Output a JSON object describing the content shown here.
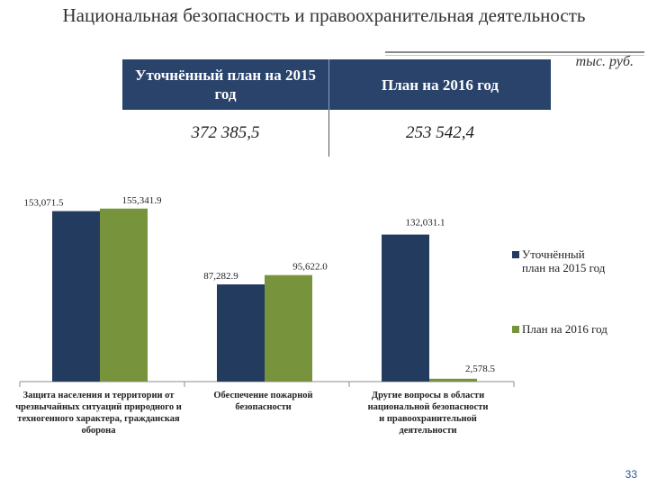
{
  "slide": {
    "title": "Национальная безопасность и правоохранительная деятельность",
    "unit": "тыс. руб.",
    "page_number": "33"
  },
  "summary_table": {
    "headers": [
      "Уточнённый план на 2015 год",
      "План на 2016 год"
    ],
    "values": [
      "372 385,5",
      "253 542,4"
    ],
    "header_color": "#29436b"
  },
  "chart_data": {
    "type": "bar",
    "categories": [
      "Защита населения и территории от чрезвычайных ситуаций природного и техногенного характера, гражданская оборона",
      "Обеспечение пожарной безопасности",
      "Другие вопросы в области национальной безопасности и правоохранительной деятельности"
    ],
    "series": [
      {
        "name": "Уточнённый план на 2015 год",
        "values": [
          153071.5,
          87282.9,
          132031.1
        ],
        "labels": [
          "153,071.5",
          "87,282.9",
          "132,031.1"
        ],
        "color": "#243b60"
      },
      {
        "name": "План на 2016 год",
        "values": [
          155341.9,
          95622.0,
          2578.5
        ],
        "labels": [
          "155,341.9",
          "95,622.0",
          "2,578.5"
        ],
        "color": "#77933c"
      }
    ],
    "ylim": [
      0,
      160000
    ],
    "grid": false,
    "legend": "right"
  }
}
